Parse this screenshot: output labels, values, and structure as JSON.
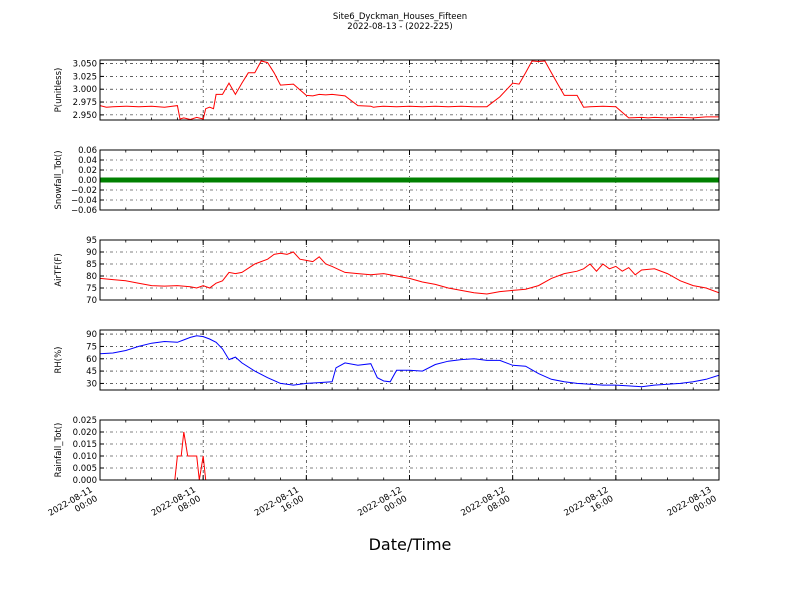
{
  "title": "Site6_Dyckman_Houses_Fifteen",
  "subtitle": "2022-08-13 - (2022-225)",
  "xlabel": "Date/Time",
  "chart_data": {
    "type": "line",
    "x_ticks": [
      [
        "2022-08-11",
        "00:00"
      ],
      [
        "2022-08-11",
        "08:00"
      ],
      [
        "2022-08-11",
        "16:00"
      ],
      [
        "2022-08-12",
        "00:00"
      ],
      [
        "2022-08-12",
        "08:00"
      ],
      [
        "2022-08-12",
        "16:00"
      ],
      [
        "2022-08-13",
        "00:00"
      ]
    ],
    "x_range_hours": [
      0,
      48
    ],
    "grid": true,
    "panels": [
      {
        "ylabel": "P(unitless)",
        "ylim": [
          2.94,
          3.057
        ],
        "yticks": [
          2.95,
          2.975,
          3.0,
          3.025,
          3.05
        ],
        "ytick_labels": [
          "2.950",
          "2.975",
          "3.000",
          "3.025",
          "3.050"
        ],
        "color": "#ff0000",
        "style": "line",
        "x": [
          0,
          0.5,
          1,
          2,
          3,
          4,
          5,
          6,
          6.2,
          6.5,
          7,
          7.5,
          8,
          8.2,
          8.5,
          8.8,
          9,
          9.5,
          10,
          10.5,
          11,
          11.5,
          12,
          12.5,
          13,
          13.5,
          14,
          15,
          16,
          16.5,
          17,
          17.5,
          18,
          19,
          20,
          21,
          21.2,
          21.5,
          22,
          23,
          24,
          25,
          26,
          27,
          28,
          29,
          30,
          31,
          32,
          32.5,
          33,
          33.5,
          34,
          34.5,
          35,
          35.5,
          36,
          37,
          37.5,
          38,
          39,
          40,
          41,
          42,
          42.5,
          43,
          44,
          45,
          46,
          47,
          48
        ],
        "y": [
          2.968,
          2.965,
          2.966,
          2.967,
          2.966,
          2.967,
          2.965,
          2.968,
          2.942,
          2.944,
          2.941,
          2.945,
          2.942,
          2.962,
          2.965,
          2.962,
          2.99,
          2.99,
          3.012,
          2.99,
          3.012,
          3.032,
          3.032,
          3.055,
          3.052,
          3.032,
          3.008,
          3.01,
          2.988,
          2.987,
          2.99,
          2.989,
          2.99,
          2.987,
          2.968,
          2.967,
          2.965,
          2.966,
          2.967,
          2.966,
          2.967,
          2.966,
          2.967,
          2.966,
          2.967,
          2.966,
          2.966,
          2.985,
          3.012,
          3.01,
          3.032,
          3.055,
          3.054,
          3.055,
          3.032,
          3.01,
          2.988,
          2.988,
          2.965,
          2.966,
          2.967,
          2.966,
          2.944,
          2.945,
          2.944,
          2.945,
          2.944,
          2.945,
          2.944,
          2.946,
          2.946
        ]
      },
      {
        "ylabel": "Snowfall_Tot()",
        "ylim": [
          -0.06,
          0.06
        ],
        "yticks": [
          -0.06,
          -0.04,
          -0.02,
          0.0,
          0.02,
          0.04,
          0.06
        ],
        "ytick_labels": [
          "−0.06",
          "−0.04",
          "−0.02",
          "0.00",
          "0.02",
          "0.04",
          "0.06"
        ],
        "color": "#008000",
        "style": "markers",
        "x": [
          0,
          48
        ],
        "y": [
          0,
          0
        ]
      },
      {
        "ylabel": "AirTF(F)",
        "ylim": [
          70,
          95
        ],
        "yticks": [
          70,
          75,
          80,
          85,
          90,
          95
        ],
        "ytick_labels": [
          "70",
          "75",
          "80",
          "85",
          "90",
          "95"
        ],
        "color": "#ff0000",
        "style": "line",
        "x": [
          0,
          1,
          2,
          3,
          4,
          5,
          6,
          7,
          7.5,
          8,
          8.5,
          9,
          9.5,
          10,
          10.5,
          11,
          12,
          13,
          13.5,
          14,
          14.5,
          15,
          15.5,
          16,
          16.5,
          17,
          17.5,
          18,
          19,
          20,
          21,
          22,
          23,
          24,
          25,
          26,
          27,
          28,
          29,
          30,
          31,
          32,
          33,
          34,
          35,
          36,
          37,
          37.5,
          38,
          38.5,
          39,
          39.5,
          40,
          40.5,
          41,
          41.5,
          42,
          43,
          44,
          45,
          46,
          47,
          48
        ],
        "y": [
          79,
          78.5,
          78,
          77,
          76,
          75.8,
          76,
          75.5,
          75,
          76,
          75,
          77,
          78,
          81.5,
          81,
          81.5,
          85,
          87,
          89,
          89.5,
          89,
          90,
          87,
          86.5,
          86,
          88,
          85,
          84,
          81.5,
          81,
          80.5,
          81,
          80,
          79,
          77.5,
          76.5,
          75,
          74,
          73,
          72.5,
          73.5,
          74,
          74.5,
          76,
          79,
          81,
          82,
          83,
          85,
          82,
          85,
          83,
          84,
          82,
          83.5,
          80.5,
          82.5,
          83,
          81,
          78,
          76,
          75,
          73
        ]
      },
      {
        "ylabel": "RH(%)",
        "ylim": [
          22,
          95
        ],
        "yticks": [
          30,
          45,
          60,
          75,
          90
        ],
        "ytick_labels": [
          "30",
          "45",
          "60",
          "75",
          "90"
        ],
        "color": "#0000ff",
        "style": "line",
        "x": [
          0,
          1,
          2,
          3,
          4,
          5,
          6,
          6.5,
          7,
          7.5,
          8,
          8.5,
          9,
          9.5,
          10,
          10.5,
          11,
          12,
          13,
          14,
          15,
          16,
          17,
          18,
          18.3,
          19,
          20,
          21,
          21.5,
          22,
          22.5,
          23,
          24,
          25,
          26,
          27,
          28,
          29,
          30,
          31,
          32,
          33,
          34,
          35,
          36,
          37,
          38,
          39,
          40,
          41,
          42,
          43,
          44,
          45,
          46,
          47,
          48
        ],
        "y": [
          66,
          67,
          70,
          75,
          79,
          81,
          80,
          83,
          86,
          88,
          87,
          84,
          80,
          72,
          59,
          62,
          55,
          45,
          37,
          30,
          28,
          30,
          31,
          32,
          49,
          55,
          52,
          54,
          37,
          33,
          32,
          46,
          46,
          45,
          53,
          57,
          59,
          60,
          58,
          58,
          52,
          51,
          42,
          35,
          32,
          30,
          29,
          28,
          28,
          27,
          26,
          28,
          29,
          30,
          32,
          35,
          40
        ]
      },
      {
        "ylabel": "Rainfall_Tot()",
        "ylim": [
          0,
          0.025
        ],
        "yticks": [
          0,
          0.005,
          0.01,
          0.015,
          0.02,
          0.025
        ],
        "ytick_labels": [
          "0.000",
          "0.005",
          "0.010",
          "0.015",
          "0.020",
          "0.025"
        ],
        "color": "#ff0000",
        "style": "line",
        "x": [
          0,
          5.8,
          6,
          6.3,
          6.5,
          6.8,
          7,
          7.5,
          7.7,
          8,
          8.2,
          8.5,
          48
        ],
        "y": [
          0,
          0,
          0.01,
          0.01,
          0.02,
          0.01,
          0.01,
          0.01,
          0,
          0.01,
          0,
          0,
          0
        ]
      }
    ]
  }
}
